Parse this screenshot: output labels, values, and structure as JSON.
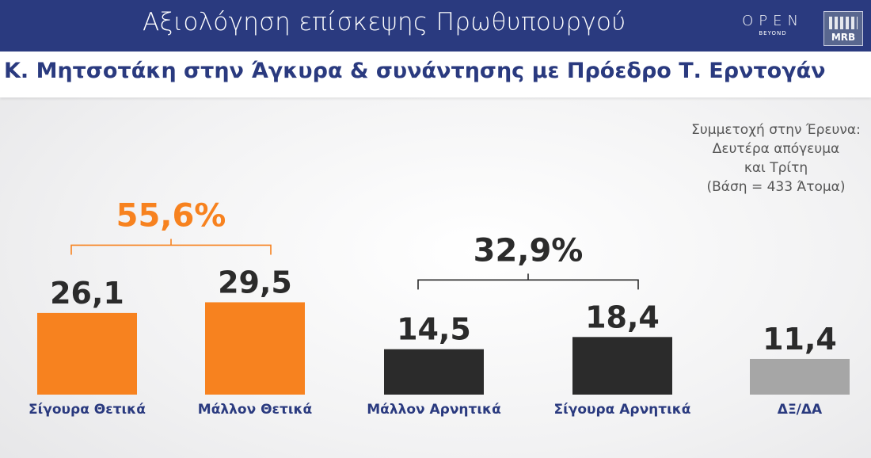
{
  "header": {
    "title": "Αξιολόγηση επίσκεψης Πρωθυπουργού",
    "brand_open": "OPEN",
    "brand_beyond": "BEYOND",
    "brand_mrb": "MRB"
  },
  "subheader": {
    "title": "Κ. Μητσοτάκη στην Άγκυρα & συνάντησης με Πρόεδρο Τ. Ερντογάν"
  },
  "note": {
    "lines": [
      "Συμμετοχή στην Έρευνα:",
      "Δευτέρα απόγευμα",
      "και Τρίτη",
      "(Βάση = 433 Άτομα)"
    ]
  },
  "colors": {
    "header_bg": "#2a3a7f",
    "positive": "#f7821f",
    "negative": "#2b2b2b",
    "neutral": "#a6a6a6",
    "value_text": "#2b2b2b",
    "label_text": "#2a3a7f"
  },
  "chart_data": {
    "type": "bar",
    "categories": [
      "Σίγουρα Θετικά",
      "Μάλλον Θετικά",
      "Μάλλον Αρνητικά",
      "Σίγουρα Αρνητικά",
      "ΔΞ/ΔΑ"
    ],
    "values": [
      26.1,
      29.5,
      14.5,
      18.4,
      11.4
    ],
    "value_labels": [
      "26,1",
      "29,5",
      "14,5",
      "18,4",
      "11,4"
    ],
    "bar_colors": [
      "#f7821f",
      "#f7821f",
      "#2b2b2b",
      "#2b2b2b",
      "#a6a6a6"
    ],
    "groups": [
      {
        "total_label": "55,6%",
        "from": 0,
        "to": 1,
        "color": "#f7821f",
        "total_color": "#f7821f"
      },
      {
        "total_label": "32,9%",
        "from": 2,
        "to": 3,
        "color": "#2b2b2b",
        "total_color": "#2b2b2b"
      }
    ],
    "unit": "%"
  }
}
